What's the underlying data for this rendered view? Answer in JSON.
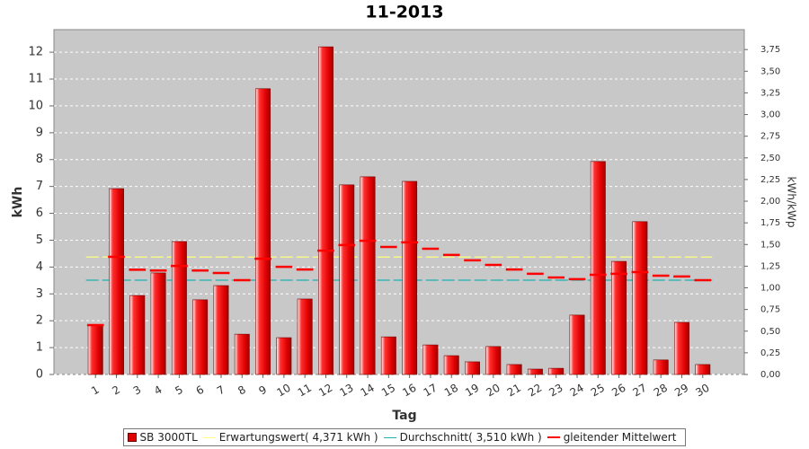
{
  "chart_data": {
    "type": "bar",
    "title": "11-2013",
    "x_label": "Tag",
    "y_label": "kWh",
    "y2_label": "kWh/kWp",
    "categories": [
      "1",
      "2",
      "3",
      "4",
      "5",
      "6",
      "7",
      "8",
      "9",
      "10",
      "11",
      "12",
      "13",
      "14",
      "15",
      "16",
      "17",
      "18",
      "19",
      "20",
      "21",
      "22",
      "23",
      "24",
      "25",
      "26",
      "27",
      "28",
      "29",
      "30"
    ],
    "series": [
      {
        "name": "SB 3000TL",
        "color": "#e00000",
        "values": [
          1.84,
          6.92,
          2.94,
          3.78,
          4.95,
          2.78,
          3.31,
          1.5,
          10.64,
          1.37,
          2.81,
          12.2,
          7.06,
          7.36,
          1.4,
          7.19,
          1.1,
          0.7,
          0.47,
          1.04,
          0.37,
          0.2,
          0.23,
          2.21,
          7.93,
          4.21,
          5.69,
          0.54,
          1.94,
          0.37
        ]
      },
      {
        "name": "gleitender Mittelwert",
        "color": "#ff0000",
        "type": "line",
        "values": [
          1.84,
          4.38,
          3.9,
          3.87,
          4.04,
          3.87,
          3.78,
          3.51,
          4.31,
          4.01,
          3.91,
          4.61,
          4.82,
          4.98,
          4.75,
          4.92,
          4.68,
          4.45,
          4.25,
          4.08,
          3.91,
          3.75,
          3.61,
          3.55,
          3.71,
          3.75,
          3.81,
          3.68,
          3.65,
          3.51
        ]
      }
    ],
    "reference_lines": [
      {
        "name": "Erwartungswert( 4,371 kWh )",
        "color": "#ffff80",
        "value": 4.371
      },
      {
        "name": "Durchschnitt( 3,510 kWh )",
        "color": "#20b0b0",
        "value": 3.51
      }
    ],
    "legend_order": [
      0,
      "r0",
      "r1",
      1
    ],
    "ylim": [
      0,
      12.84
    ],
    "yticks": [
      0,
      1,
      2,
      3,
      4,
      5,
      6,
      7,
      8,
      9,
      10,
      11,
      12
    ],
    "y2lim": [
      0,
      3.98
    ],
    "y2ticks": [
      {
        "value": 0,
        "label": "0,00"
      },
      {
        "value": 0.25,
        "label": "0,25"
      },
      {
        "value": 0.5,
        "label": "0,50"
      },
      {
        "value": 0.75,
        "label": "0,75"
      },
      {
        "value": 1,
        "label": "1,00"
      },
      {
        "value": 1.25,
        "label": "1,25"
      },
      {
        "value": 1.5,
        "label": "1,50"
      },
      {
        "value": 1.75,
        "label": "1,75"
      },
      {
        "value": 2,
        "label": "2,00"
      },
      {
        "value": 2.25,
        "label": "2,25"
      },
      {
        "value": 2.5,
        "label": "2,50"
      },
      {
        "value": 2.75,
        "label": "2,75"
      },
      {
        "value": 3,
        "label": "3,00"
      },
      {
        "value": 3.25,
        "label": "3,25"
      },
      {
        "value": 3.5,
        "label": "3,50"
      },
      {
        "value": 3.75,
        "label": "3,75"
      }
    ],
    "grid": true
  }
}
